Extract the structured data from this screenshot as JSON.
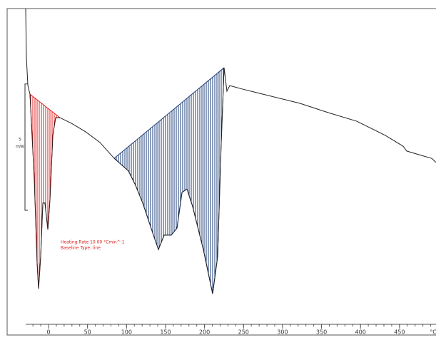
{
  "chart_data": {
    "type": "line",
    "x_unit": "°C",
    "color": "#222222",
    "x": [
      -29.3,
      -28.4,
      -26.5,
      -23.8,
      -18.3,
      -14.6,
      -12.8,
      -10.1,
      -7.3,
      -4.6,
      -0.9,
      1.8,
      5.5,
      9.1,
      14.6,
      29.3,
      47.6,
      65.9,
      84.2,
      102.5,
      111.6,
      120.8,
      134.5,
      140.9,
      148.2,
      157.4,
      164.7,
      171.1,
      177.5,
      184.8,
      198.5,
      210.4,
      216.8,
      221.4,
      225.1,
      228.7,
      232.4,
      248.9,
      285.5,
      322.1,
      358.6,
      395.2,
      431.8,
      454.7,
      459.3,
      477.6,
      491.3,
      496.8
    ],
    "values": [
      12.5,
      10.58,
      9.45,
      9.11,
      5.78,
      2.4,
      1.41,
      2.68,
      4.8,
      4.8,
      3.75,
      4.94,
      7.48,
      8.18,
      8.18,
      7.96,
      7.62,
      7.2,
      6.57,
      6.07,
      5.5,
      4.8,
      3.53,
      2.96,
      3.53,
      3.53,
      3.81,
      5.22,
      5.36,
      4.66,
      2.96,
      1.21,
      2.68,
      7.2,
      10.16,
      9.23,
      9.45,
      9.31,
      9.03,
      8.75,
      8.38,
      8.04,
      7.48,
      7.05,
      6.86,
      6.69,
      6.57,
      6.41
    ],
    "integrals": [
      {
        "color": "#e02020",
        "xrange": [
          -23.8,
          14.6
        ]
      },
      {
        "color": "#1f3f7a",
        "xrange": [
          84.2,
          225.1
        ]
      }
    ],
    "xlim": [
      -29.3,
      496.8
    ],
    "ylim": [
      0,
      12.5
    ],
    "xticks": [
      0,
      50,
      100,
      150,
      200,
      250,
      300,
      350,
      400,
      450
    ],
    "xminorticks": [
      -20,
      -10,
      0,
      10,
      20,
      30,
      40,
      50,
      60,
      70,
      80,
      90,
      100,
      110,
      120,
      130,
      140,
      150,
      160,
      170,
      180,
      190,
      200,
      210,
      220,
      230,
      240,
      250,
      260,
      270,
      280,
      290,
      300,
      310,
      320,
      330,
      340,
      350,
      360,
      370,
      380,
      390,
      400,
      410,
      420,
      430,
      440,
      450,
      460,
      470,
      480,
      490
    ],
    "scale_bar": {
      "value": 5,
      "unit": "mW"
    },
    "annotations": [
      "Heating Rate 10.00 °Cmin^-1",
      "Baseline Type: line"
    ]
  }
}
